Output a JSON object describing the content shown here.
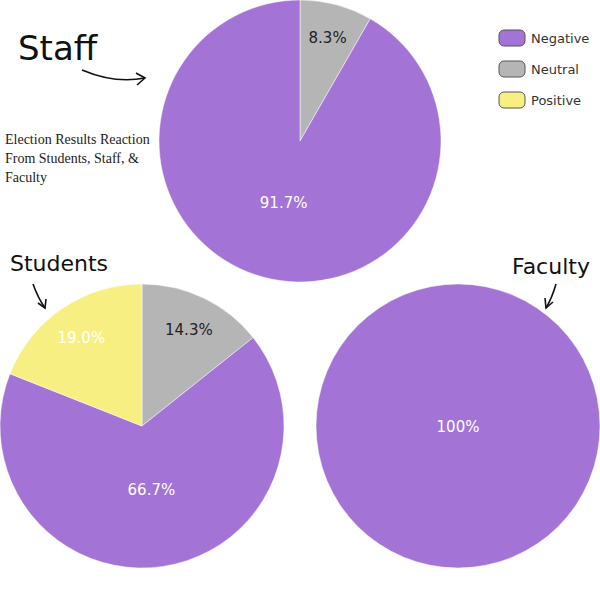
{
  "title": "Election Results Reaction From Students, Staff, & Faculty",
  "legend_items": [
    {
      "name": "Negative",
      "color": "#a374d5"
    },
    {
      "name": "Neutral",
      "color": "#b5b5b5"
    },
    {
      "name": "Positive",
      "color": "#f7ef82"
    }
  ],
  "chart_data": [
    {
      "type": "pie",
      "title": "Staff",
      "categories": [
        "Neutral",
        "Negative"
      ],
      "values": [
        8.3,
        91.7
      ],
      "colors": [
        "#b5b5b5",
        "#a374d5"
      ],
      "data_labels": true,
      "value_labels": [
        "8.3%",
        "91.7%"
      ]
    },
    {
      "type": "pie",
      "title": "Students",
      "categories": [
        "Neutral",
        "Negative",
        "Positive"
      ],
      "values": [
        14.3,
        66.7,
        19.0
      ],
      "colors": [
        "#b5b5b5",
        "#a374d5",
        "#f7ef82"
      ],
      "data_labels": true,
      "value_labels": [
        "14.3%",
        "66.7%",
        "19.0%"
      ]
    },
    {
      "type": "pie",
      "title": "Faculty",
      "categories": [
        "Negative"
      ],
      "values": [
        100
      ],
      "colors": [
        "#a374d5"
      ],
      "data_labels": true,
      "value_labels": [
        "100%"
      ]
    }
  ]
}
